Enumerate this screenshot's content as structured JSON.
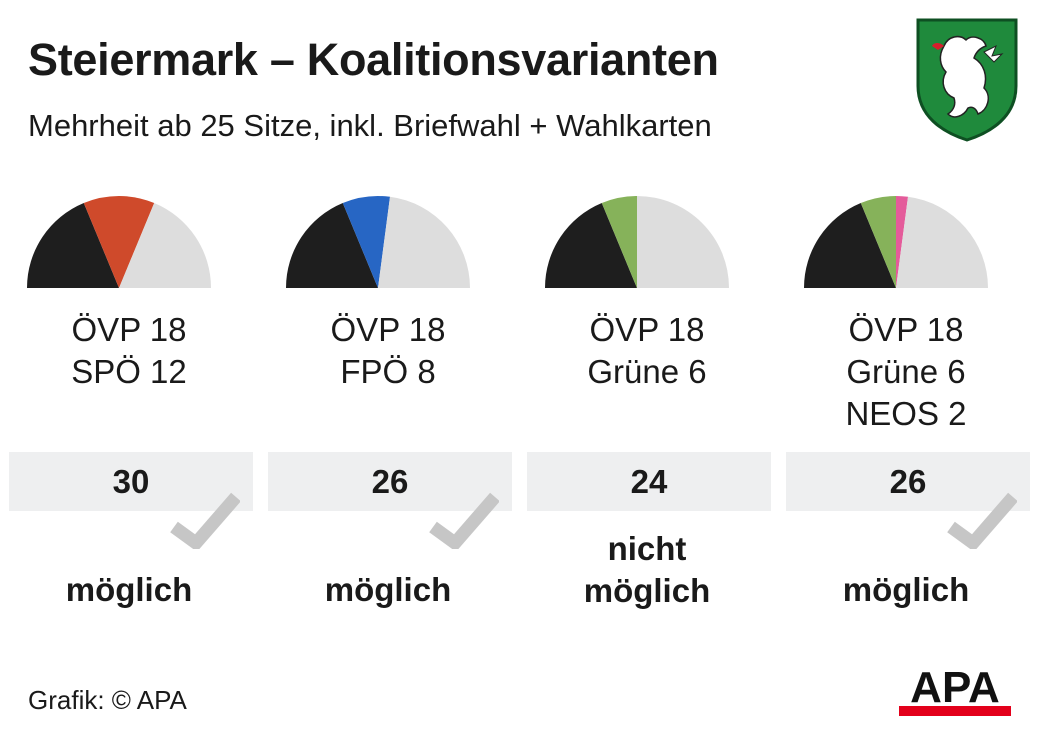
{
  "title": "Steiermark – Koalitionsvarianten",
  "subtitle": "Mehrheit ab 25 Sitze, inkl. Briefwahl + Wahlkarten",
  "source": "Grafik: © APA",
  "logo_text": "APA",
  "crest_icon": "styrian-panther-crest",
  "colors": {
    "ÖVP": "#1e1e1e",
    "SPÖ": "#cf4a2b",
    "FPÖ": "#2766c4",
    "Grüne": "#86b25a",
    "NEOS": "#e45b9a",
    "rest": "#dddddd",
    "box": "#eeeff0",
    "check": "#c6c6c6",
    "apa_red": "#e3001b"
  },
  "chart_data": {
    "type": "pie",
    "subtype": "semicircle",
    "total_seats": 48,
    "majority": 25,
    "coalitions": [
      {
        "parties": [
          {
            "name": "ÖVP",
            "seats": 18
          },
          {
            "name": "SPÖ",
            "seats": 12
          }
        ],
        "lines": [
          "ÖVP 18",
          "SPÖ 12"
        ],
        "total": 30,
        "status_lines": [
          "möglich"
        ],
        "possible": true
      },
      {
        "parties": [
          {
            "name": "ÖVP",
            "seats": 18
          },
          {
            "name": "FPÖ",
            "seats": 8
          }
        ],
        "lines": [
          "ÖVP 18",
          "FPÖ 8"
        ],
        "total": 26,
        "status_lines": [
          "möglich"
        ],
        "possible": true
      },
      {
        "parties": [
          {
            "name": "ÖVP",
            "seats": 18
          },
          {
            "name": "Grüne",
            "seats": 6
          }
        ],
        "lines": [
          "ÖVP 18",
          "Grüne 6"
        ],
        "total": 24,
        "status_lines": [
          "nicht",
          "möglich"
        ],
        "possible": false
      },
      {
        "parties": [
          {
            "name": "ÖVP",
            "seats": 18
          },
          {
            "name": "Grüne",
            "seats": 6
          },
          {
            "name": "NEOS",
            "seats": 2
          }
        ],
        "lines": [
          "ÖVP 18",
          "Grüne 6",
          "NEOS 2"
        ],
        "total": 26,
        "status_lines": [
          "möglich"
        ],
        "possible": true
      }
    ]
  }
}
